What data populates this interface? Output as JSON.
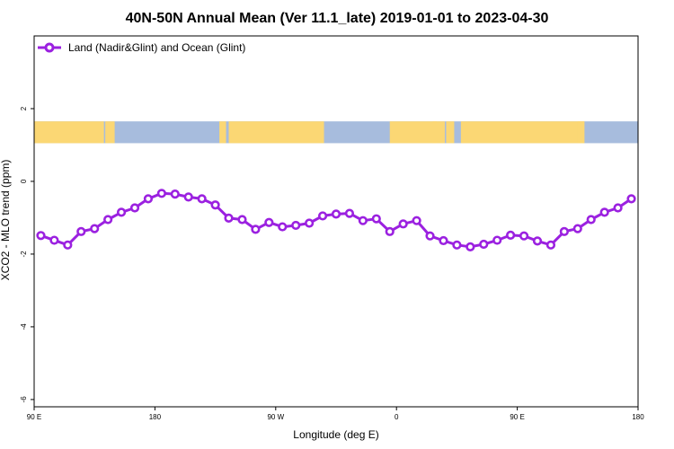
{
  "chart_data": {
    "type": "line",
    "title": "40N-50N Annual Mean (Ver 11.1_late)   2019-01-01 to 2023-04-30",
    "xlabel": "Longitude (deg E)",
    "ylabel": "XCO2 - MLO trend (ppm)",
    "x_ticks": [
      {
        "value": 90,
        "label": "90 E"
      },
      {
        "value": 180,
        "label": "180"
      },
      {
        "value": 270,
        "label": "90 W"
      },
      {
        "value": 360,
        "label": "0"
      },
      {
        "value": 450,
        "label": "90 E"
      },
      {
        "value": 540,
        "label": "180"
      }
    ],
    "y_ticks": [
      {
        "value": -6,
        "label": "-6"
      },
      {
        "value": -4,
        "label": "-4"
      },
      {
        "value": -2,
        "label": "-2"
      },
      {
        "value": 0,
        "label": "0"
      },
      {
        "value": 2,
        "label": "2"
      }
    ],
    "xlim": [
      90,
      540
    ],
    "ylim": [
      -6.2,
      4.0
    ],
    "legend_position": "top-left",
    "land_band": {
      "y_range": [
        1.05,
        1.65
      ],
      "land_color": "#fbd774",
      "ocean_color": "#a7bcdd"
    },
    "series": [
      {
        "name": "Land (Nadir&Glint) and Ocean (Glint)",
        "color": "#9b21e0",
        "x": [
          95,
          105,
          115,
          125,
          135,
          145,
          155,
          165,
          175,
          185,
          195,
          205,
          215,
          225,
          235,
          245,
          255,
          265,
          275,
          285,
          295,
          305,
          315,
          325,
          335,
          345,
          355,
          365,
          375,
          385,
          395,
          405,
          415,
          425,
          435,
          445,
          455,
          465,
          475,
          485,
          495,
          505,
          515,
          525,
          535
        ],
        "y": [
          -1.49,
          -1.62,
          -1.75,
          -1.38,
          -1.3,
          -1.05,
          -0.85,
          -0.73,
          -0.48,
          -0.33,
          -0.35,
          -0.43,
          -0.48,
          -0.65,
          -1.01,
          -1.05,
          -1.32,
          -1.13,
          -1.25,
          -1.21,
          -1.15,
          -0.95,
          -0.9,
          -0.88,
          -1.08,
          -1.03,
          -1.38,
          -1.17,
          -1.08,
          -1.5,
          -1.63,
          -1.75,
          -1.8,
          -1.73,
          -1.62,
          -1.48,
          -1.5,
          -1.64,
          -1.75,
          -1.38,
          -1.3,
          -1.05,
          -0.85,
          -0.73,
          -0.48
        ]
      }
    ]
  }
}
